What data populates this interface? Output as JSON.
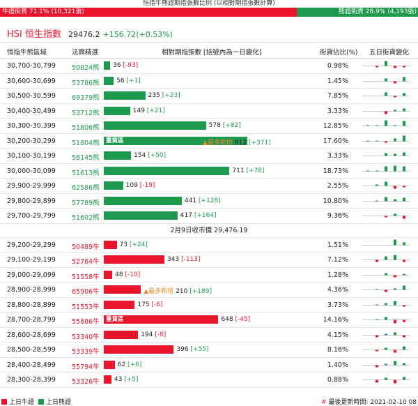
{
  "header": {
    "caption": "恒指牛熊證期指張數比例 (以相對期指張數計算)",
    "bull_label": "牛證街貨 71.1% (10,321張)",
    "bear_label": "熊證街貨 28.9% (4,193張)",
    "bull_fraction": 0.711
  },
  "index": {
    "name": "HSI 恒生指數",
    "value": "29476.2",
    "change": "+156.72(+0.53%)"
  },
  "columns": {
    "range": "恒指牛熊區域",
    "code": "法興精選",
    "count": "相對期指張數 [括號內為一日變化]",
    "pct": "街貨佔比(%)",
    "spark": "五日街貨變化"
  },
  "middle_label": "2月9日收市價 29,476.19",
  "bear_rows": [
    {
      "range": "30,700-30,799",
      "code": "50824熊",
      "count": 36,
      "delta": "[-93]",
      "delta_sign": "neg",
      "pct": "0.98%",
      "tag": "",
      "new": "",
      "spark": [
        0,
        -2,
        7,
        -3,
        -2
      ]
    },
    {
      "range": "30,600-30,699",
      "code": "53786熊",
      "count": 56,
      "delta": "[+1]",
      "delta_sign": "pos",
      "pct": "1.45%",
      "tag": "",
      "new": "",
      "spark": [
        0,
        0,
        4,
        -3,
        6
      ]
    },
    {
      "range": "30,500-30,599",
      "code": "69379熊",
      "count": 235,
      "delta": "[+23]",
      "delta_sign": "pos",
      "pct": "7.85%",
      "tag": "",
      "new": "",
      "spark": [
        0,
        0,
        5,
        -2,
        4
      ]
    },
    {
      "range": "30,400-30,499",
      "code": "53712熊",
      "count": 149,
      "delta": "[+21]",
      "delta_sign": "pos",
      "pct": "3.33%",
      "tag": "",
      "new": "",
      "spark": [
        0,
        0,
        -4,
        2,
        4
      ]
    },
    {
      "range": "30,300-30,399",
      "code": "51806熊",
      "count": 578,
      "delta": "[+82]",
      "delta_sign": "pos",
      "pct": "12.85%",
      "tag": "",
      "new": "",
      "spark": [
        1,
        1,
        8,
        1,
        7
      ]
    },
    {
      "range": "30,200-30,299",
      "code": "51804熊",
      "count": 812,
      "delta": "[+371]",
      "delta_sign": "pos",
      "pct": "17.60%",
      "tag": "重貨區",
      "new": "▲最多新增",
      "spark": [
        1,
        1,
        -2,
        4,
        8
      ]
    },
    {
      "range": "30,100-30,199",
      "code": "58145熊",
      "count": 154,
      "delta": "[+50]",
      "delta_sign": "pos",
      "pct": "3.33%",
      "tag": "",
      "new": "",
      "spark": [
        0,
        0,
        4,
        3,
        5
      ]
    },
    {
      "range": "30,000-30,099",
      "code": "51613熊",
      "count": 711,
      "delta": "[+78]",
      "delta_sign": "pos",
      "pct": "18.73%",
      "tag": "",
      "new": "",
      "spark": [
        1,
        1,
        7,
        8,
        7
      ]
    },
    {
      "range": "29,900-29,999",
      "code": "62586熊",
      "count": 109,
      "delta": "[-19]",
      "delta_sign": "neg",
      "pct": "2.55%",
      "tag": "",
      "new": "",
      "spark": [
        0,
        2,
        6,
        -4,
        -2
      ]
    },
    {
      "range": "29,800-29,899",
      "code": "57789熊",
      "count": 441,
      "delta": "[+128]",
      "delta_sign": "pos",
      "pct": "10.80%",
      "tag": "",
      "new": "",
      "spark": [
        0,
        1,
        6,
        3,
        5
      ]
    },
    {
      "range": "29,700-29,799",
      "code": "51602熊",
      "count": 417,
      "delta": "[+164]",
      "delta_sign": "pos",
      "pct": "9.36%",
      "tag": "",
      "new": "",
      "spark": [
        0,
        0,
        -2,
        3,
        -4
      ]
    }
  ],
  "bull_rows": [
    {
      "range": "29,200-29,299",
      "code": "50489牛",
      "count": 73,
      "delta": "[+24]",
      "delta_sign": "pos",
      "pct": "1.51%",
      "tag": "",
      "new": "",
      "spark": [
        0,
        0,
        0,
        8,
        4
      ]
    },
    {
      "range": "29,100-29,199",
      "code": "52764牛",
      "count": 343,
      "delta": "[-113]",
      "delta_sign": "neg",
      "pct": "7.12%",
      "tag": "",
      "new": "",
      "spark": [
        0,
        -3,
        5,
        7,
        -3
      ]
    },
    {
      "range": "29,000-29,099",
      "code": "51558牛",
      "count": 48,
      "delta": "[-10]",
      "delta_sign": "neg",
      "pct": "1.28%",
      "tag": "",
      "new": "",
      "spark": [
        0,
        0,
        3,
        -3,
        2
      ]
    },
    {
      "range": "28,900-28,999",
      "code": "65906牛",
      "count": 210,
      "delta": "[+189]",
      "delta_sign": "pos",
      "pct": "4.36%",
      "tag": "",
      "new": "▲最多新增",
      "spark": [
        0,
        1,
        -3,
        2,
        6
      ]
    },
    {
      "range": "28,800-28,899",
      "code": "51553牛",
      "count": 175,
      "delta": "[-6]",
      "delta_sign": "neg",
      "pct": "3.73%",
      "tag": "",
      "new": "",
      "spark": [
        0,
        1,
        3,
        6,
        -2
      ]
    },
    {
      "range": "28,700-28,799",
      "code": "55686牛",
      "count": 648,
      "delta": "[-45]",
      "delta_sign": "neg",
      "pct": "14.16%",
      "tag": "重貨區",
      "new": "",
      "spark": [
        0,
        1,
        4,
        -5,
        -3
      ]
    },
    {
      "range": "28,600-28,699",
      "code": "53340牛",
      "count": 194,
      "delta": "[-8]",
      "delta_sign": "neg",
      "pct": "4.15%",
      "tag": "",
      "new": "",
      "spark": [
        0,
        -3,
        2,
        4,
        -3
      ]
    },
    {
      "range": "28,500-28,599",
      "code": "53339牛",
      "count": 396,
      "delta": "[+55]",
      "delta_sign": "pos",
      "pct": "8.16%",
      "tag": "",
      "new": "",
      "spark": [
        0,
        -2,
        3,
        -4,
        5
      ]
    },
    {
      "range": "28,400-28,499",
      "code": "55794牛",
      "count": 62,
      "delta": "[+6]",
      "delta_sign": "pos",
      "pct": "1.40%",
      "tag": "",
      "new": "",
      "spark": [
        0,
        -3,
        2,
        6,
        3
      ]
    },
    {
      "range": "28,300-28,399",
      "code": "53326牛",
      "count": 43,
      "delta": "[+5]",
      "delta_sign": "pos",
      "pct": "0.88%",
      "tag": "",
      "new": "",
      "spark": [
        0,
        -4,
        3,
        -5,
        4
      ]
    }
  ],
  "footer": {
    "bull_legend": "上日牛證",
    "bear_legend": "上日熊證",
    "update_hash": "#",
    "update_text": "最後更新時間: 2021-02-10 08"
  },
  "colors": {
    "bull": "#e8152c",
    "bear": "#1d9a4e",
    "new": "#e8892b"
  }
}
